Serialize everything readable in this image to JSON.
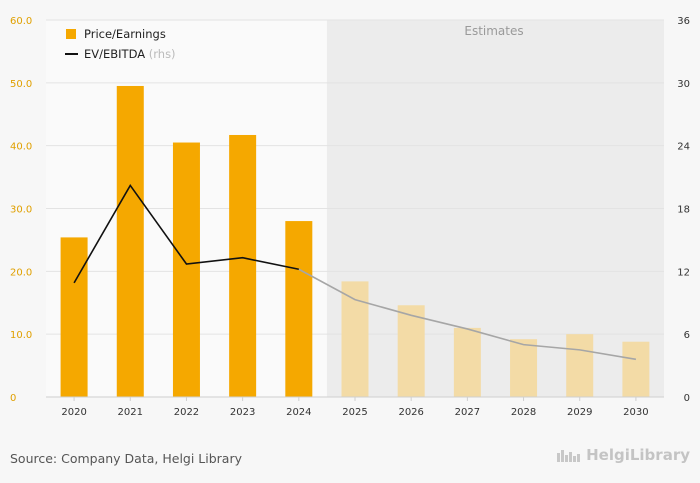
{
  "chart_data": {
    "type": "bar",
    "categories": [
      "2020",
      "2021",
      "2022",
      "2023",
      "2024",
      "2025",
      "2026",
      "2027",
      "2028",
      "2029",
      "2030"
    ],
    "series": [
      {
        "name": "Price/Earnings",
        "axis": "left",
        "kind": "bar",
        "values": [
          25.4,
          49.5,
          40.5,
          41.7,
          28.0,
          18.4,
          14.6,
          11.0,
          9.2,
          10.0,
          8.8
        ]
      },
      {
        "name": "EV/EBITDA",
        "axis": "right",
        "kind": "line",
        "values": [
          10.9,
          20.2,
          12.7,
          13.3,
          12.2,
          9.3,
          7.8,
          6.5,
          5.0,
          4.5,
          3.6
        ]
      }
    ],
    "estimates_start": "2025",
    "estimates_label": "Estimates",
    "legend_suffix": "(rhs)",
    "left_ticks": [
      "0",
      "10.0",
      "20.0",
      "30.0",
      "40.0",
      "50.0",
      "60.0"
    ],
    "right_ticks": [
      "0",
      "6",
      "12",
      "18",
      "24",
      "30",
      "36"
    ],
    "ylim_left": [
      0,
      60
    ],
    "ylim_right": [
      0,
      36
    ],
    "colors": {
      "bar_actual": "#f5a800",
      "bar_estimate": "#f3dba6",
      "line_actual": "#111111",
      "line_estimate": "#a6a6a6",
      "left_axis_text": "#e0a000",
      "estimates_bg": "#ececec"
    },
    "legend_position": "top-left",
    "grid": true
  },
  "footer": {
    "source": "Source: Company Data, Helgi Library",
    "brand": "HelgiLibrary"
  }
}
